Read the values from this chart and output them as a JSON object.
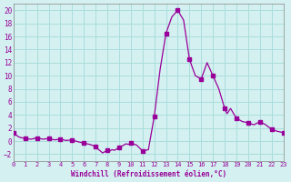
{
  "xlabel": "Windchill (Refroidissement éolien,°C)",
  "ylabel": "",
  "background_color": "#d4f0f0",
  "grid_color": "#aadddd",
  "line_color": "#990099",
  "marker_color": "#990099",
  "xlim": [
    0,
    23
  ],
  "ylim": [
    -3,
    21
  ],
  "yticks": [
    -2,
    0,
    2,
    4,
    6,
    8,
    10,
    12,
    14,
    16,
    18,
    20
  ],
  "xticks": [
    0,
    1,
    2,
    3,
    4,
    5,
    6,
    7,
    8,
    9,
    10,
    11,
    12,
    13,
    14,
    15,
    16,
    17,
    18,
    19,
    20,
    21,
    22,
    23
  ],
  "x": [
    0,
    0.5,
    1,
    1.5,
    2,
    2.5,
    3,
    3.5,
    4,
    4.5,
    5,
    5.5,
    6,
    6.5,
    7,
    7.2,
    7.4,
    7.6,
    7.8,
    8,
    8.2,
    8.4,
    8.6,
    8.8,
    9,
    9.2,
    9.4,
    9.6,
    9.8,
    10,
    10.5,
    11,
    11.5,
    12,
    12.5,
    13,
    13.5,
    14,
    14.5,
    15,
    15.5,
    16,
    16.5,
    17,
    17.5,
    18,
    18.2,
    18.5,
    19,
    19.5,
    20,
    20.5,
    21,
    21.5,
    22,
    22.5,
    23
  ],
  "y": [
    1.2,
    0.6,
    0.4,
    0.3,
    0.5,
    0.3,
    0.4,
    0.2,
    0.3,
    0.1,
    0.2,
    -0.1,
    -0.3,
    -0.5,
    -0.8,
    -1.2,
    -1.5,
    -1.8,
    -1.6,
    -1.4,
    -1.5,
    -1.3,
    -1.4,
    -1.2,
    -1.0,
    -0.8,
    -0.6,
    -0.4,
    -0.5,
    -0.3,
    -0.6,
    -1.5,
    -1.3,
    3.8,
    11.0,
    16.5,
    19.0,
    20.0,
    18.5,
    12.5,
    10.0,
    9.5,
    12.0,
    10.0,
    8.0,
    5.0,
    4.2,
    5.0,
    3.5,
    3.0,
    2.8,
    2.5,
    3.0,
    2.5,
    1.8,
    1.5,
    1.3
  ],
  "marker_x": [
    0,
    1,
    2,
    3,
    4,
    5,
    6,
    7,
    8,
    9,
    10,
    11,
    12,
    13,
    14,
    15,
    16,
    17,
    18,
    19,
    20,
    21,
    22,
    23
  ],
  "marker_y": [
    1.2,
    0.4,
    0.5,
    0.4,
    0.3,
    0.2,
    -0.3,
    -0.8,
    -1.4,
    -1.0,
    -0.3,
    -1.5,
    3.8,
    16.5,
    20.0,
    12.5,
    9.5,
    10.0,
    5.0,
    3.5,
    2.8,
    3.0,
    1.8,
    1.3
  ]
}
